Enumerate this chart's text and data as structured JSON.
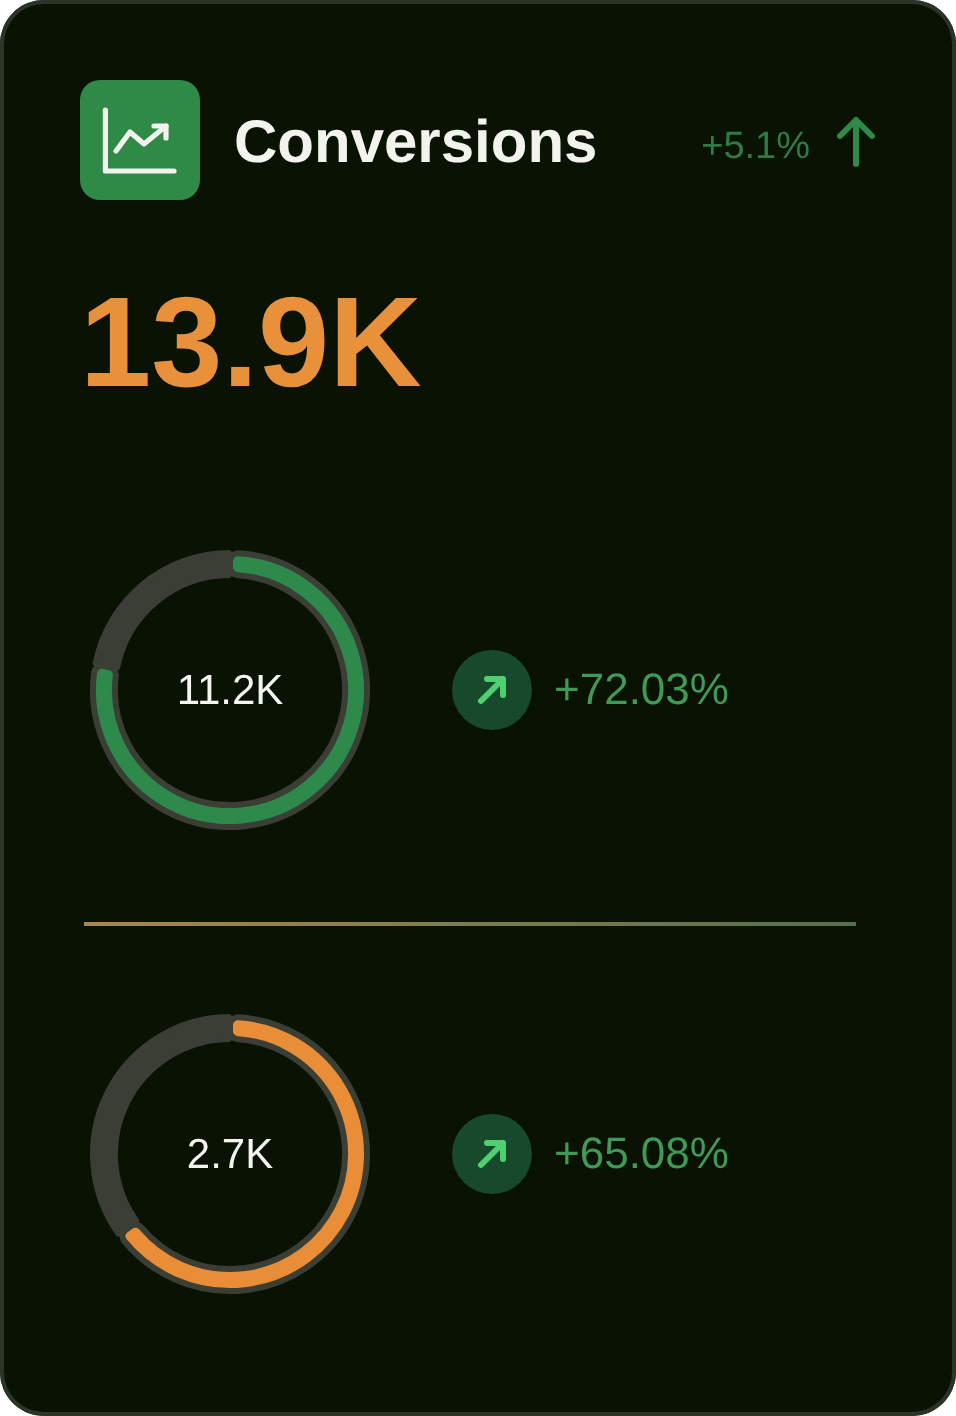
{
  "chart_data": [
    {
      "type": "other",
      "title": "Conversions",
      "annotations": [
        "+5.1%",
        "13.9K"
      ]
    },
    {
      "type": "donut",
      "categories": [
        null,
        null
      ],
      "values": [
        78,
        22
      ],
      "colors": [
        "#2e8a4a",
        "#3b3e35"
      ],
      "annotations": [
        "11.2K",
        "+72.03%"
      ]
    },
    {
      "type": "donut",
      "categories": [
        null,
        null
      ],
      "values": [
        65,
        35
      ],
      "colors": [
        "#e98e37",
        "#3b3e35"
      ],
      "annotations": [
        "2.7K",
        "+65.08%"
      ]
    }
  ]
}
